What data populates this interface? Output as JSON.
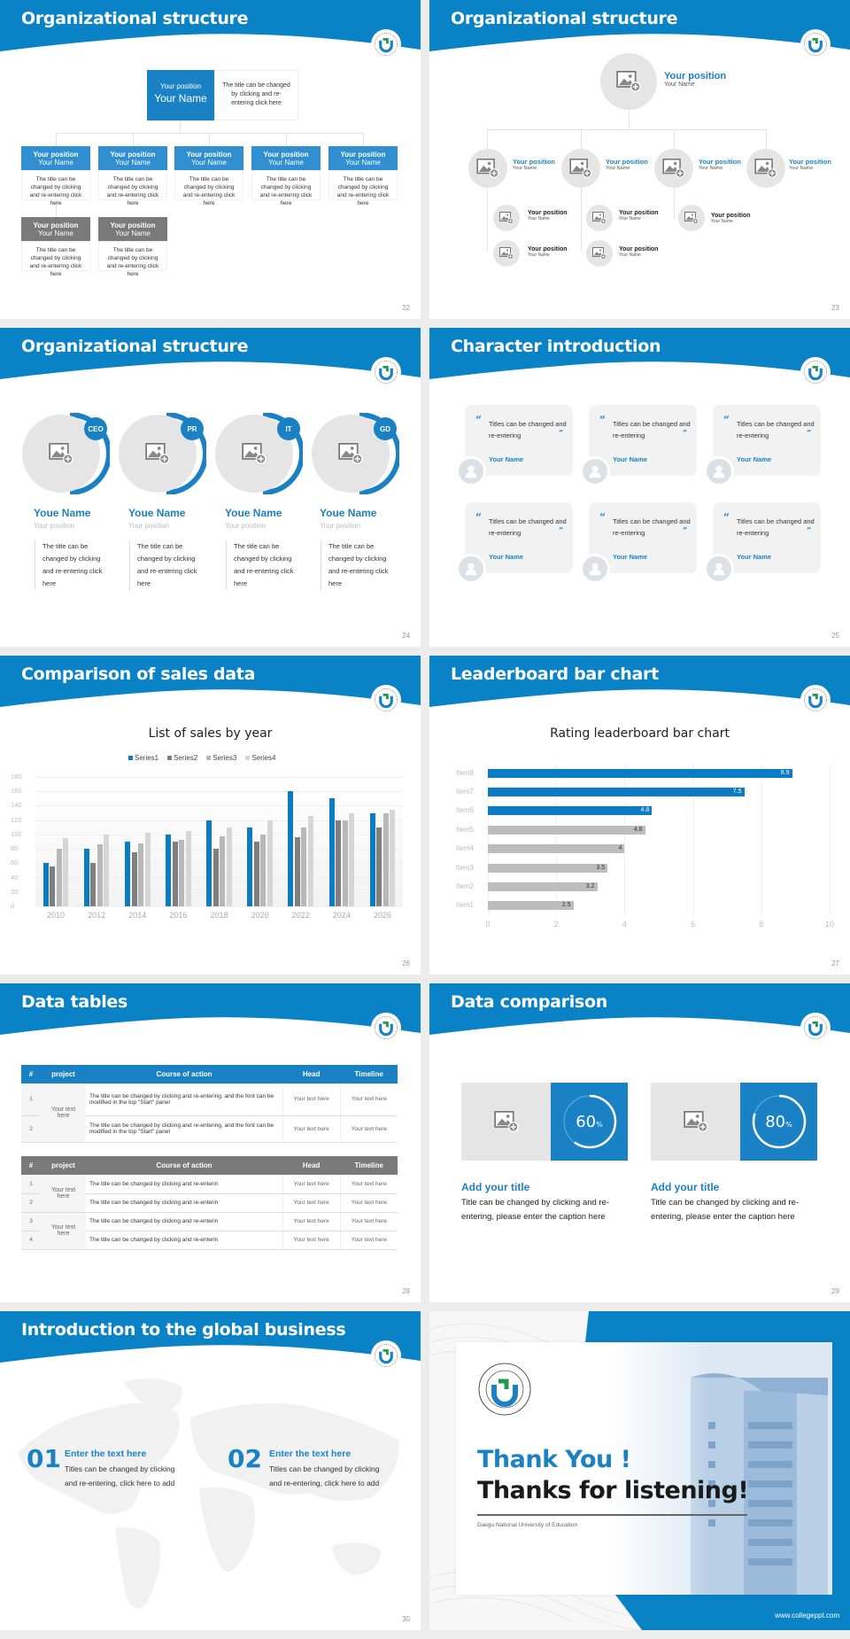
{
  "brand": {
    "primary": "#1a82c4",
    "gray": "#7a7a7a",
    "light_gray": "#e5e5e5"
  },
  "slides": [
    {
      "page": "22",
      "title": "Organizational structure",
      "top": {
        "position": "Your position",
        "name": "Your Name",
        "desc": "The title can be changed by clicking and re-entering click here"
      },
      "members": [
        {
          "position": "Your position",
          "name": "Your Name",
          "desc": "The title can be changed by clicking and re-entering click here"
        },
        {
          "position": "Your position",
          "name": "Your Name",
          "desc": "The title can be changed by clicking and re-entering click here"
        },
        {
          "position": "Your position",
          "name": "Your Name",
          "desc": "The title can be changed by clicking and re-entering click here"
        },
        {
          "position": "Your position",
          "name": "Your Name",
          "desc": "The title can be changed by clicking and re-entering click here"
        },
        {
          "position": "Your position",
          "name": "Your Name",
          "desc": "The title can be changed by clicking and re-entering click here"
        },
        {
          "position": "Your position",
          "name": "Your Name",
          "desc": "The title can be changed by clicking and re-entering click here"
        },
        {
          "position": "Your position",
          "name": "Your Name",
          "desc": "The title can be changed by clicking and re-entering click here"
        }
      ]
    },
    {
      "page": "23",
      "title": "Organizational structure",
      "top": {
        "position": "Your position",
        "name": "Your Name"
      },
      "level2": [
        {
          "position": "Your position",
          "name": "Your Name"
        },
        {
          "position": "Your position",
          "name": "Your Name"
        },
        {
          "position": "Your position",
          "name": "Your Name"
        },
        {
          "position": "Your position",
          "name": "Your Name"
        }
      ],
      "level3": [
        {
          "position": "Your position",
          "name": "Your Name"
        },
        {
          "position": "Your position",
          "name": "Your Name"
        },
        {
          "position": "Your position",
          "name": "Your Name"
        },
        {
          "position": "Your position",
          "name": "Your Name"
        },
        {
          "position": "Your position",
          "name": "Your Name"
        }
      ]
    },
    {
      "page": "24",
      "title": "Organizational structure",
      "people": [
        {
          "badge": "CEO",
          "name": "Youe Name",
          "position": "Your position",
          "desc": "The title can be changed by clicking and re-entering click here"
        },
        {
          "badge": "PR",
          "name": "Youe Name",
          "position": "Your position",
          "desc": "The title can be changed by clicking and re-entering click here"
        },
        {
          "badge": "IT",
          "name": "Youe Name",
          "position": "Your position",
          "desc": "The title can be changed by clicking and re-entering click here"
        },
        {
          "badge": "GD",
          "name": "Youe Name",
          "position": "Your position",
          "desc": "The title can be changed by clicking and re-entering click here"
        }
      ]
    },
    {
      "page": "25",
      "title": "Character introduction",
      "cards": [
        {
          "quote": "Titles can be changed and re-entering",
          "name": "Your Name"
        },
        {
          "quote": "Titles can be changed and re-entering",
          "name": "Your Name"
        },
        {
          "quote": "Titles can be changed and re-entering",
          "name": "Your Name"
        },
        {
          "quote": "Titles can be changed and re-entering",
          "name": "Your Name"
        },
        {
          "quote": "Titles can be changed and re-entering",
          "name": "Your Name"
        },
        {
          "quote": "Titles can be changed and re-entering",
          "name": "Your Name"
        }
      ]
    },
    {
      "page": "26",
      "title": "Comparison of sales data"
    },
    {
      "page": "27",
      "title": "Leaderboard bar chart"
    },
    {
      "page": "28",
      "title": "Data tables",
      "table1": {
        "headers": [
          "#",
          "project",
          "Course of action",
          "Head",
          "Timeline"
        ],
        "project": "Your text here",
        "rows": [
          {
            "num": "1",
            "action": "The title can be changed by clicking and re-entering, and the font can be modified in the top \"Start\" panel",
            "head": "Your text here",
            "timeline": "Your text here"
          },
          {
            "num": "2",
            "action": "The title can be changed by clicking and re-entering, and the font can be modified in the top \"Start\" panel",
            "head": "Your text here",
            "timeline": "Your text here"
          }
        ]
      },
      "table2": {
        "headers": [
          "#",
          "project",
          "Course of action",
          "Head",
          "Timeline"
        ],
        "projects": [
          "Your text here",
          "Your text here"
        ],
        "rows": [
          {
            "num": "1",
            "action": "The title can be changed by clicking and re-enterin",
            "head": "Your text here",
            "timeline": "Your text here"
          },
          {
            "num": "2",
            "action": "The title can be changed by clicking and re-enterin",
            "head": "Your text here",
            "timeline": "Your text here"
          },
          {
            "num": "3",
            "action": "The title can be changed by clicking and re-enterin",
            "head": "Your text here",
            "timeline": "Your text here"
          },
          {
            "num": "4",
            "action": "The title can be changed by clicking and re-enterin",
            "head": "Your text here",
            "timeline": "Your text here"
          }
        ]
      }
    },
    {
      "page": "29",
      "title": "Data comparison",
      "items": [
        {
          "percent": "60",
          "unit": "%",
          "title": "Add your title",
          "text": "Title can be changed by clicking and re-entering, please enter the caption here"
        },
        {
          "percent": "80",
          "unit": "%",
          "title": "Add your title",
          "text": "Title can be changed by clicking and re-entering, please enter the caption here"
        }
      ]
    },
    {
      "page": "30",
      "title": "Introduction to the global business",
      "items": [
        {
          "num": "01",
          "title": "Enter the text here",
          "text": "Titles can be changed by clicking and re-entering, click here to add"
        },
        {
          "num": "02",
          "title": "Enter the text here",
          "text": "Titles can be changed by clicking and re-entering, click here to add"
        }
      ]
    },
    {
      "thank_you": "Thank You !",
      "thanks": "Thanks for listening!",
      "university": "Daegu National University of Education",
      "website": "www.collegeppt.com",
      "logo_ring_text": "DAEGU NATIONAL UNIVERSITY OF EDUCATION"
    }
  ],
  "chart_data": [
    {
      "type": "bar",
      "title": "List of sales by year",
      "categories": [
        "2010",
        "2012",
        "2014",
        "2016",
        "2018",
        "2020",
        "2022",
        "2024",
        "2026"
      ],
      "series": [
        {
          "name": "Series1",
          "color": "#0a7bc4",
          "values": [
            60,
            80,
            90,
            100,
            120,
            110,
            160,
            150,
            130
          ]
        },
        {
          "name": "Series2",
          "color": "#7f7f7f",
          "values": [
            55,
            60,
            75,
            90,
            80,
            90,
            96,
            120,
            110
          ]
        },
        {
          "name": "Series3",
          "color": "#b8b8b8",
          "values": [
            80,
            86,
            88,
            92,
            98,
            100,
            110,
            120,
            130
          ]
        },
        {
          "name": "Series4",
          "color": "#d6d6d6",
          "values": [
            95,
            100,
            102,
            105,
            110,
            120,
            126,
            130,
            135
          ]
        }
      ],
      "yticks": [
        "0",
        "20",
        "40",
        "60",
        "80",
        "100",
        "120",
        "140",
        "160",
        "180"
      ],
      "ylim": [
        0,
        180
      ],
      "xlabel": "",
      "ylabel": "",
      "legend_position": "top",
      "grid": true
    },
    {
      "type": "bar",
      "orientation": "horizontal",
      "title": "Rating leaderboard bar chart",
      "categories": [
        "Item8",
        "Item7",
        "Item6",
        "Item5",
        "Item4",
        "Item3",
        "Item2",
        "Item1"
      ],
      "values": [
        8.9,
        7.5,
        4.8,
        4.6,
        4,
        3.5,
        3.2,
        2.5
      ],
      "labels": [
        "8.9",
        "7.5",
        "4.8",
        "4.6",
        "4",
        "3.5",
        "3.2",
        "2.5"
      ],
      "highlight": [
        true,
        true,
        true,
        false,
        false,
        false,
        false,
        false
      ],
      "xticks": [
        "0",
        "2",
        "4",
        "6",
        "8",
        "10"
      ],
      "xlim": [
        0,
        10
      ],
      "xlabel": "",
      "ylabel": "",
      "grid": true
    }
  ]
}
